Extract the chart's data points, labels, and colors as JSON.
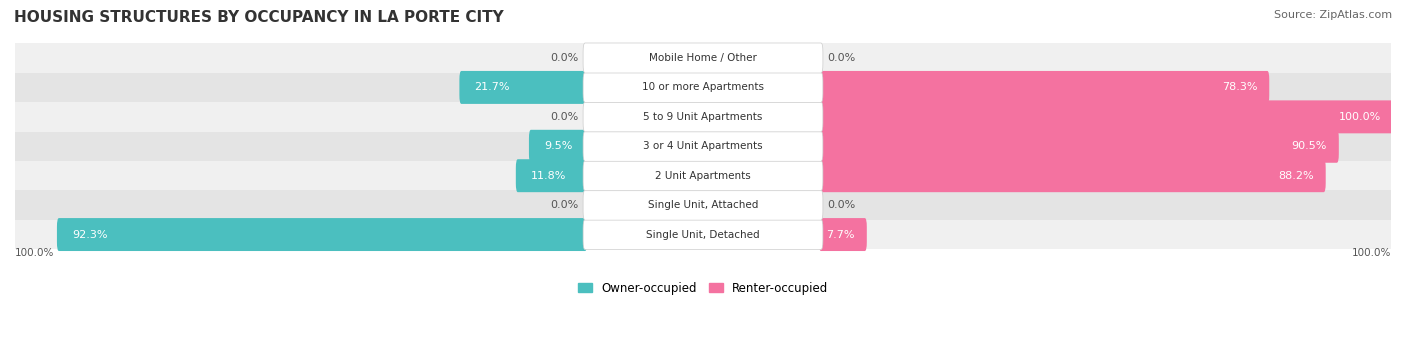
{
  "title": "HOUSING STRUCTURES BY OCCUPANCY IN LA PORTE CITY",
  "source": "Source: ZipAtlas.com",
  "categories": [
    "Single Unit, Detached",
    "Single Unit, Attached",
    "2 Unit Apartments",
    "3 or 4 Unit Apartments",
    "5 to 9 Unit Apartments",
    "10 or more Apartments",
    "Mobile Home / Other"
  ],
  "owner_values": [
    92.3,
    0.0,
    11.8,
    9.5,
    0.0,
    21.7,
    0.0
  ],
  "renter_values": [
    7.7,
    0.0,
    88.2,
    90.5,
    100.0,
    78.3,
    0.0
  ],
  "owner_color": "#4BBFBF",
  "renter_color": "#F472A0",
  "row_bg_colors": [
    "#F0F0F0",
    "#E4E4E4"
  ],
  "title_fontsize": 11,
  "source_fontsize": 8,
  "bar_label_fontsize": 8,
  "category_fontsize": 7.5,
  "legend_fontsize": 8.5,
  "axis_label_fontsize": 7.5
}
